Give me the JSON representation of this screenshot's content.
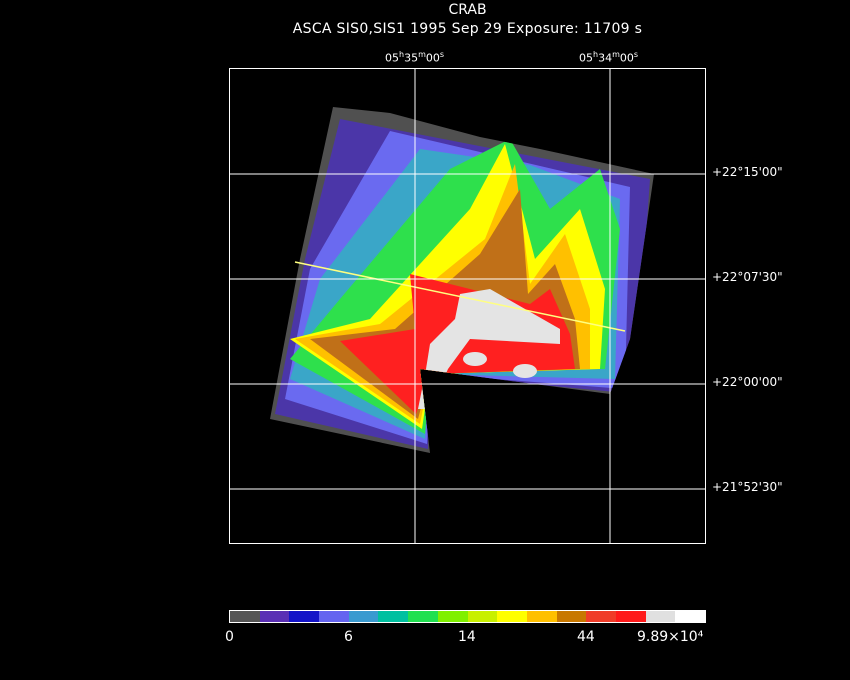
{
  "header": {
    "title": "CRAB",
    "subtitle": "ASCA SIS0,SIS1   1995 Sep 29    Exposure: 11709 s"
  },
  "axes": {
    "ra_ticks": [
      {
        "h": "05",
        "m": "35",
        "s": "00"
      },
      {
        "h": "05",
        "m": "34",
        "s": "00"
      }
    ],
    "dec_ticks": [
      "+22°15'00\"",
      "+22°07'30\"",
      "+22°00'00\"",
      "+21°52'30\""
    ]
  },
  "colorbar": {
    "colors": [
      "#555555",
      "#5a2fb5",
      "#1414c8",
      "#6464f0",
      "#3a9ad0",
      "#00c0a0",
      "#20e050",
      "#80f000",
      "#c8f000",
      "#ffff00",
      "#ffc000",
      "#c87800",
      "#f03c28",
      "#ff1a1a",
      "#e0e0e0",
      "#ffffff"
    ],
    "labels": [
      "0",
      "6",
      "14",
      "44",
      "9.89×10⁴"
    ]
  },
  "image_colors": {
    "gray": "#505050",
    "purple": "#4b36a8",
    "blue": "#2222d0",
    "lblue": "#6a6af0",
    "teal": "#3aa6c8",
    "cyan": "#00c4a0",
    "green": "#2ee04c",
    "lgreen": "#86f000",
    "ygreen": "#c8f000",
    "yellow": "#ffff00",
    "orange": "#ffc000",
    "brown": "#c07018",
    "red": "#ff2020",
    "white": "#e4e4e4"
  }
}
